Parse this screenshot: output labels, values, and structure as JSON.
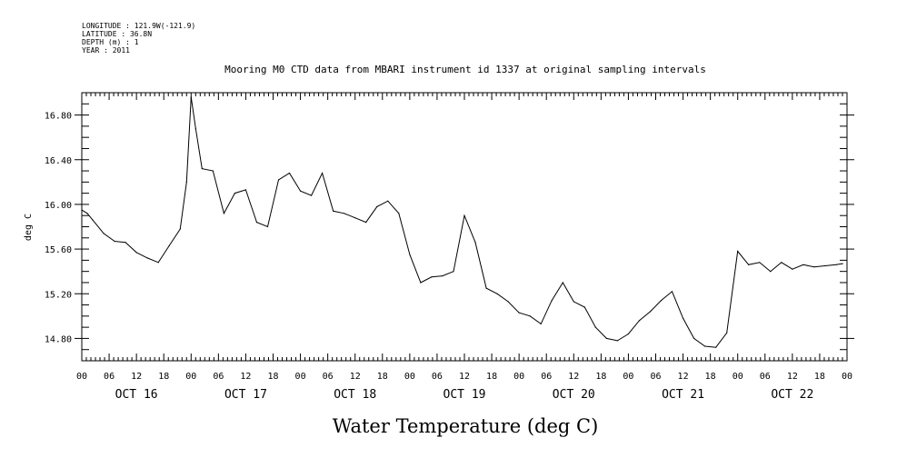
{
  "header": {
    "longitude": "LONGITUDE : 121.9W(-121.9)",
    "latitude": "LATITUDE : 36.8N",
    "depth": "DEPTH (m) : 1",
    "year": "YEAR : 2011"
  },
  "chart_data": {
    "type": "line",
    "title": "Mooring M0 CTD data from MBARI instrument id 1337 at original sampling intervals",
    "xlabel": "Water Temperature (deg C)",
    "ylabel": "deg C",
    "xlim": [
      "2011-10-16T00:00",
      "2011-10-23T00:00"
    ],
    "ylim": [
      14.6,
      17.0
    ],
    "y_ticks": [
      "14.80",
      "15.20",
      "15.60",
      "16.00",
      "16.40",
      "16.80"
    ],
    "x_hour_ticks": [
      "00",
      "06",
      "12",
      "18",
      "00",
      "06",
      "12",
      "18",
      "00",
      "06",
      "12",
      "18",
      "00",
      "06",
      "12",
      "18",
      "00",
      "06",
      "12",
      "18",
      "00",
      "06",
      "12",
      "18",
      "00",
      "06",
      "12",
      "18",
      "00"
    ],
    "x_day_labels": [
      "OCT 16",
      "OCT 17",
      "OCT 18",
      "OCT 19",
      "OCT 20",
      "OCT 21",
      "OCT 22"
    ],
    "grid": false,
    "series": [
      {
        "x": [
          "2011-10-16T00:00",
          "2011-10-16T01:12",
          "2011-10-16T02:24",
          "2011-10-16T04:48",
          "2011-10-16T07:12",
          "2011-10-16T09:36",
          "2011-10-16T12:00",
          "2011-10-16T14:24",
          "2011-10-16T16:48",
          "2011-10-16T19:12",
          "2011-10-16T21:36",
          "2011-10-16T23:00",
          "2011-10-17T00:00",
          "2011-10-17T01:00",
          "2011-10-17T02:24",
          "2011-10-17T04:48",
          "2011-10-17T07:12",
          "2011-10-17T09:36",
          "2011-10-17T12:00",
          "2011-10-17T14:24",
          "2011-10-17T16:48",
          "2011-10-17T19:12",
          "2011-10-17T21:36",
          "2011-10-18T00:00",
          "2011-10-18T02:24",
          "2011-10-18T04:48",
          "2011-10-18T07:12",
          "2011-10-18T09:36",
          "2011-10-18T12:00",
          "2011-10-18T14:24",
          "2011-10-18T16:48",
          "2011-10-18T19:12",
          "2011-10-18T21:36",
          "2011-10-19T00:00",
          "2011-10-19T02:24",
          "2011-10-19T04:48",
          "2011-10-19T07:12",
          "2011-10-19T09:36",
          "2011-10-19T12:00",
          "2011-10-19T14:24",
          "2011-10-19T16:48",
          "2011-10-19T19:12",
          "2011-10-19T21:36",
          "2011-10-20T00:00",
          "2011-10-20T02:24",
          "2011-10-20T04:48",
          "2011-10-20T07:12",
          "2011-10-20T09:36",
          "2011-10-20T12:00",
          "2011-10-20T14:24",
          "2011-10-20T16:48",
          "2011-10-20T19:12",
          "2011-10-20T21:36",
          "2011-10-21T00:00",
          "2011-10-21T02:24",
          "2011-10-21T04:48",
          "2011-10-21T07:12",
          "2011-10-21T09:36",
          "2011-10-21T12:00",
          "2011-10-21T14:24",
          "2011-10-21T16:48",
          "2011-10-21T19:12",
          "2011-10-21T21:36",
          "2011-10-22T00:00",
          "2011-10-22T02:24",
          "2011-10-22T04:48",
          "2011-10-22T07:12",
          "2011-10-22T09:36",
          "2011-10-22T12:00",
          "2011-10-22T14:24",
          "2011-10-22T16:48",
          "2011-10-22T19:12",
          "2011-10-22T21:36",
          "2011-10-22T23:00"
        ],
        "y": [
          15.95,
          15.92,
          15.86,
          15.74,
          15.67,
          15.66,
          15.57,
          15.52,
          15.48,
          15.63,
          15.78,
          16.2,
          16.96,
          16.68,
          16.32,
          16.3,
          15.92,
          16.1,
          16.13,
          15.84,
          15.8,
          16.22,
          16.28,
          16.12,
          16.08,
          16.28,
          15.94,
          15.92,
          15.88,
          15.84,
          15.98,
          16.03,
          15.92,
          15.55,
          15.3,
          15.35,
          15.36,
          15.4,
          15.9,
          15.66,
          15.25,
          15.2,
          15.13,
          15.03,
          15.0,
          14.93,
          15.14,
          15.3,
          15.13,
          15.08,
          14.9,
          14.8,
          14.78,
          14.84,
          14.96,
          15.04,
          15.14,
          15.22,
          14.98,
          14.8,
          14.73,
          14.72,
          14.85,
          15.58,
          15.46,
          15.48,
          15.4,
          15.48,
          15.42,
          15.46,
          15.44,
          15.45,
          15.46,
          15.47
        ]
      }
    ]
  }
}
